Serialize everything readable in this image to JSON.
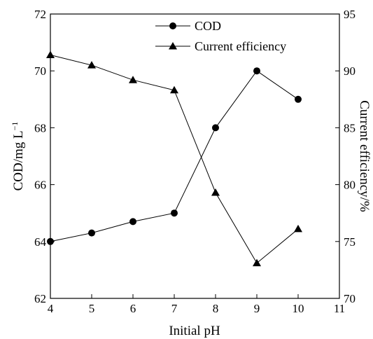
{
  "chart_data": {
    "type": "line",
    "x": [
      4,
      5,
      6,
      7,
      8,
      9,
      10
    ],
    "series": [
      {
        "name": "COD",
        "axis": "left",
        "marker": "circle",
        "values": [
          64.0,
          64.3,
          64.7,
          65.0,
          68.0,
          70.0,
          69.0
        ]
      },
      {
        "name": "Current efficiency",
        "axis": "right",
        "marker": "triangle",
        "values": [
          91.4,
          90.5,
          89.2,
          88.3,
          79.3,
          73.1,
          76.1
        ]
      }
    ],
    "xlabel": "Initial pH",
    "ylabel": "COD/mg L",
    "ylabel_sup": "−1",
    "y2label": "Current efficiency/%",
    "xlim": [
      4,
      11
    ],
    "ylim": [
      62,
      72
    ],
    "y2lim": [
      70,
      95
    ],
    "xticks": [
      "4",
      "5",
      "6",
      "7",
      "8",
      "9",
      "10",
      "11"
    ],
    "yticks": [
      "62",
      "64",
      "66",
      "68",
      "70",
      "72"
    ],
    "y2ticks": [
      "70",
      "75",
      "80",
      "85",
      "90",
      "95"
    ],
    "legend_position": "top-center",
    "grid": false,
    "color": "#000000"
  }
}
